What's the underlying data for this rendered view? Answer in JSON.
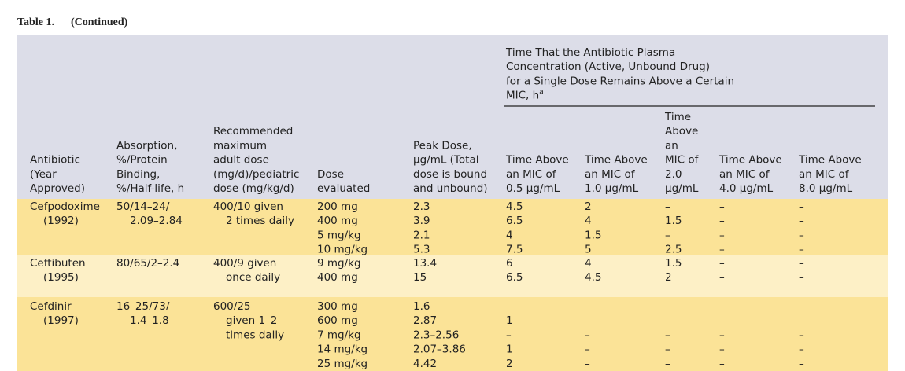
{
  "caption": {
    "label": "Table 1.",
    "note": "(Continued)"
  },
  "header": {
    "group": {
      "lines": [
        "Time That the Antibiotic Plasma",
        "Concentration (Active, Unbound Drug)",
        "for a Single Dose Remains Above a Certain",
        "MIC, h"
      ],
      "footnote": "a"
    },
    "columns": [
      {
        "lines": [
          "Antibiotic",
          "(Year",
          "Approved)"
        ]
      },
      {
        "lines": [
          "Absorption,",
          "%/Protein",
          "Binding,",
          "%/Half-life, h"
        ]
      },
      {
        "lines": [
          "Recommended",
          "maximum",
          "adult dose",
          "(mg/d)/pediatric",
          "dose (mg/kg/d)"
        ]
      },
      {
        "lines": [
          "Dose",
          "evaluated"
        ]
      },
      {
        "lines": [
          "Peak Dose,",
          "μg/mL (Total",
          "dose is bound",
          "and unbound)"
        ]
      },
      {
        "lines": [
          "Time Above",
          "an MIC of",
          "0.5 μg/mL"
        ]
      },
      {
        "lines": [
          "Time Above",
          "an MIC of",
          "1.0 μg/mL"
        ]
      },
      {
        "lines": [
          "Time",
          "Above",
          "an",
          "MIC of",
          "2.0",
          "μg/mL"
        ]
      },
      {
        "lines": [
          "Time Above",
          "an MIC of",
          "4.0 μg/mL"
        ]
      },
      {
        "lines": [
          "Time Above",
          "an MIC of",
          "8.0 μg/mL"
        ]
      }
    ]
  },
  "groups": [
    {
      "antibiotic": [
        "Cefpodoxime",
        "(1992)"
      ],
      "absorption": [
        "50/14–24/",
        "2.09–2.84"
      ],
      "recommended": [
        "400/10 given",
        "2 times daily"
      ],
      "rows": [
        [
          "200 mg",
          "2.3",
          "4.5",
          "2",
          "–",
          "–",
          "–"
        ],
        [
          "400 mg",
          "3.9",
          "6.5",
          "4",
          "1.5",
          "–",
          "–"
        ],
        [
          "5 mg/kg",
          "2.1",
          "4",
          "1.5",
          "–",
          "–",
          "–"
        ],
        [
          "10 mg/kg",
          "5.3",
          "7.5",
          "5",
          "2.5",
          "–",
          "–"
        ]
      ]
    },
    {
      "antibiotic": [
        "Ceftibuten",
        "(1995)"
      ],
      "absorption": [
        "80/65/2–2.4"
      ],
      "recommended": [
        "400/9 given",
        "once daily"
      ],
      "rows": [
        [
          "9 mg/kg",
          "13.4",
          "6",
          "4",
          "1.5",
          "–",
          "–"
        ],
        [
          "400 mg",
          "15",
          "6.5",
          "4.5",
          "2",
          "–",
          "–"
        ]
      ]
    },
    {
      "antibiotic": [
        "Cefdinir",
        "(1997)"
      ],
      "absorption": [
        "16–25/73/",
        "1.4–1.8"
      ],
      "recommended": [
        "600/25",
        "given 1–2",
        "times daily"
      ],
      "rows": [
        [
          "300 mg",
          "1.6",
          "–",
          "–",
          "–",
          "–",
          "–"
        ],
        [
          "600 mg",
          "2.87",
          "1",
          "–",
          "–",
          "–",
          "–"
        ],
        [
          "7 mg/kg",
          "2.3–2.56",
          "–",
          "–",
          "–",
          "–",
          "–"
        ],
        [
          "14 mg/kg",
          "2.07–3.86",
          "1",
          "–",
          "–",
          "–",
          "–"
        ],
        [
          "25 mg/kg",
          "4.42",
          "2",
          "–",
          "–",
          "–",
          "–"
        ]
      ]
    }
  ]
}
